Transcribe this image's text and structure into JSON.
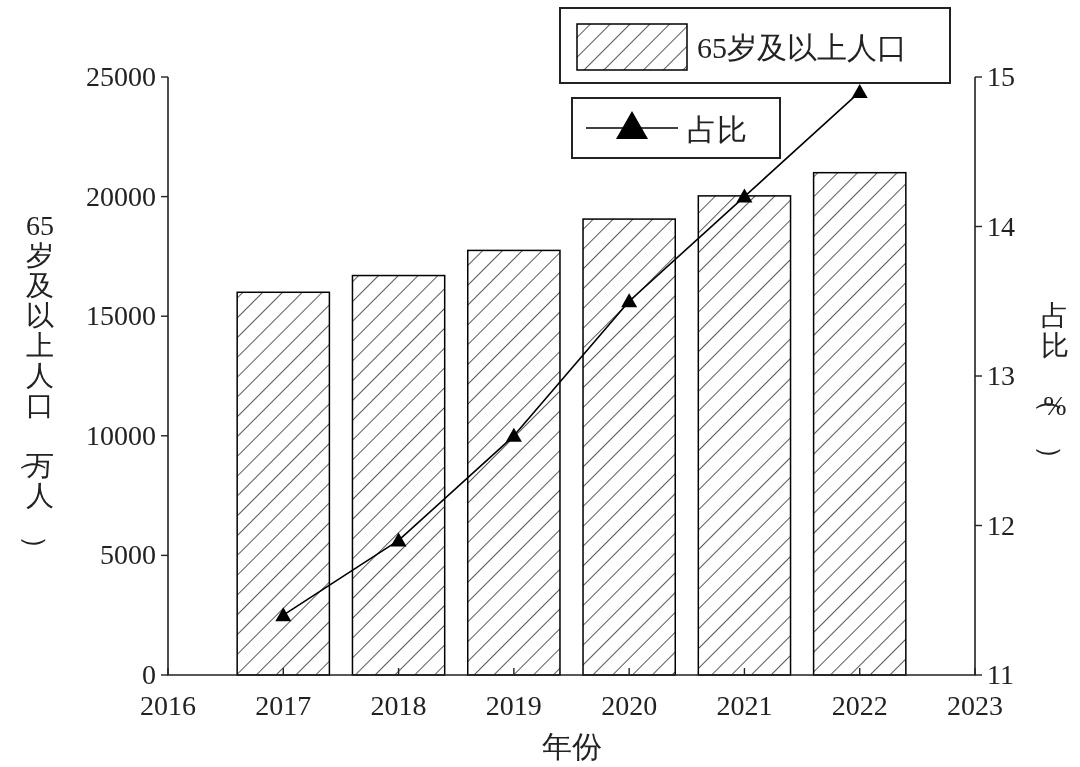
{
  "chart_data": {
    "type": "bar",
    "xlabel": "年份",
    "ylabel": "65岁及以上人口（万人）",
    "y2label": "占比（%）",
    "x": [
      2017,
      2018,
      2019,
      2020,
      2021,
      2022
    ],
    "xlim": [
      2016,
      2023
    ],
    "xticks": [
      2016,
      2017,
      2018,
      2019,
      2020,
      2021,
      2022,
      2023
    ],
    "ylim": [
      0,
      25000
    ],
    "yticks": [
      0,
      5000,
      10000,
      15000,
      20000,
      25000
    ],
    "y2lim": [
      11,
      15
    ],
    "y2ticks": [
      11,
      12,
      13,
      14,
      15
    ],
    "legend": "top right",
    "grid": false,
    "series": [
      {
        "name": "65岁及以上人口",
        "color": "#000000",
        "values": [
          16000,
          16700,
          17750,
          19060,
          20030,
          21000
        ]
      },
      {
        "name": "占比",
        "type": "line",
        "axis": "y2",
        "color": "#000000",
        "marker": "triangle",
        "line_style": "solid",
        "values": [
          11.4,
          11.9,
          12.6,
          13.5,
          14.2,
          14.9
        ]
      }
    ]
  }
}
